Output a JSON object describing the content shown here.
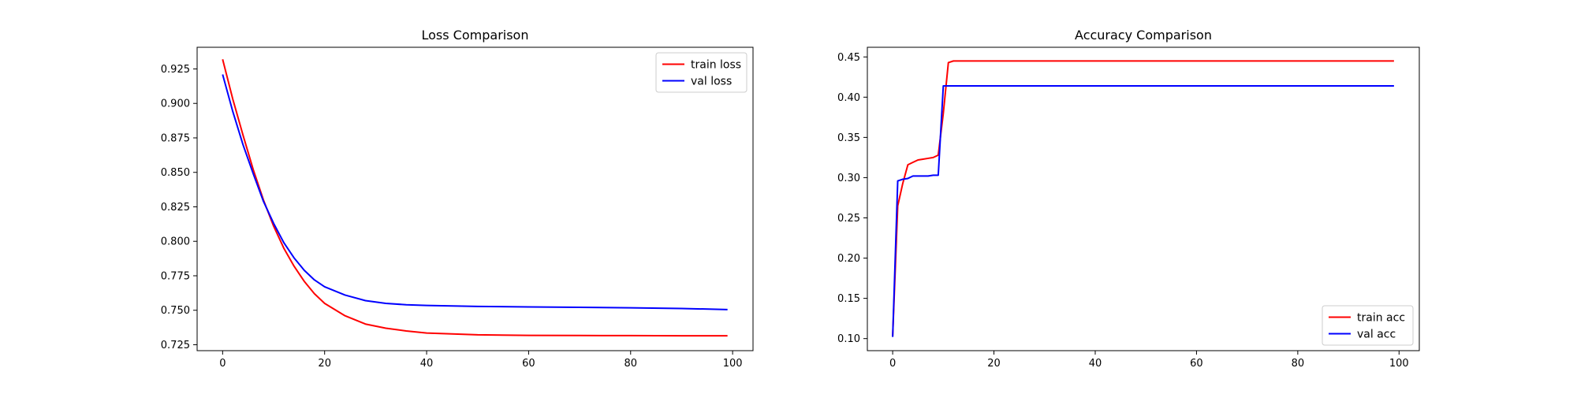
{
  "chart_data": [
    {
      "type": "line",
      "title": "Loss Comparison",
      "xlim": [
        -5,
        104
      ],
      "ylim": [
        0.7207,
        0.9407
      ],
      "xticks": [
        0,
        20,
        40,
        60,
        80,
        100
      ],
      "yticks": [
        0.725,
        0.75,
        0.775,
        0.8,
        0.825,
        0.85,
        0.875,
        0.9,
        0.925
      ],
      "ytick_labels": [
        "0.725",
        "0.750",
        "0.775",
        "0.800",
        "0.825",
        "0.850",
        "0.875",
        "0.900",
        "0.925"
      ],
      "legend_position": "top-right",
      "grid": false,
      "series": [
        {
          "name": "train loss",
          "color": "#ff0000",
          "x": [
            0,
            2,
            4,
            6,
            8,
            10,
            12,
            14,
            16,
            18,
            20,
            24,
            28,
            32,
            36,
            40,
            50,
            60,
            70,
            80,
            90,
            99
          ],
          "y": [
            0.932,
            0.903,
            0.877,
            0.852,
            0.83,
            0.811,
            0.795,
            0.782,
            0.771,
            0.762,
            0.755,
            0.746,
            0.74,
            0.737,
            0.735,
            0.7335,
            0.7322,
            0.7318,
            0.7317,
            0.7316,
            0.7315,
            0.7315
          ]
        },
        {
          "name": "val loss",
          "color": "#0000ff",
          "x": [
            0,
            2,
            4,
            6,
            8,
            10,
            12,
            14,
            16,
            18,
            20,
            24,
            28,
            32,
            36,
            40,
            50,
            60,
            70,
            80,
            90,
            99
          ],
          "y": [
            0.921,
            0.894,
            0.87,
            0.849,
            0.829,
            0.813,
            0.799,
            0.788,
            0.779,
            0.772,
            0.767,
            0.761,
            0.757,
            0.755,
            0.754,
            0.7535,
            0.7528,
            0.7524,
            0.7521,
            0.7518,
            0.7513,
            0.7505
          ]
        }
      ]
    },
    {
      "type": "line",
      "title": "Accuracy Comparison",
      "xlim": [
        -5,
        104
      ],
      "ylim": [
        0.085,
        0.462
      ],
      "xticks": [
        0,
        20,
        40,
        60,
        80,
        100
      ],
      "yticks": [
        0.1,
        0.15,
        0.2,
        0.25,
        0.3,
        0.35,
        0.4,
        0.45
      ],
      "ytick_labels": [
        "0.10",
        "0.15",
        "0.20",
        "0.25",
        "0.30",
        "0.35",
        "0.40",
        "0.45"
      ],
      "legend_position": "bottom-right",
      "grid": false,
      "series": [
        {
          "name": "train acc",
          "color": "#ff0000",
          "x": [
            0,
            1,
            2,
            3,
            4,
            5,
            6,
            7,
            8,
            9,
            10,
            11,
            12,
            20,
            40,
            60,
            80,
            99
          ],
          "y": [
            0.103,
            0.265,
            0.293,
            0.316,
            0.319,
            0.322,
            0.323,
            0.324,
            0.325,
            0.328,
            0.38,
            0.443,
            0.445,
            0.445,
            0.445,
            0.445,
            0.445,
            0.445
          ]
        },
        {
          "name": "val acc",
          "color": "#0000ff",
          "x": [
            0,
            1,
            2,
            3,
            4,
            5,
            6,
            7,
            8,
            9,
            10,
            11,
            20,
            40,
            60,
            80,
            99
          ],
          "y": [
            0.102,
            0.296,
            0.298,
            0.299,
            0.302,
            0.302,
            0.302,
            0.302,
            0.303,
            0.303,
            0.414,
            0.414,
            0.414,
            0.414,
            0.414,
            0.414,
            0.414
          ]
        }
      ]
    }
  ]
}
